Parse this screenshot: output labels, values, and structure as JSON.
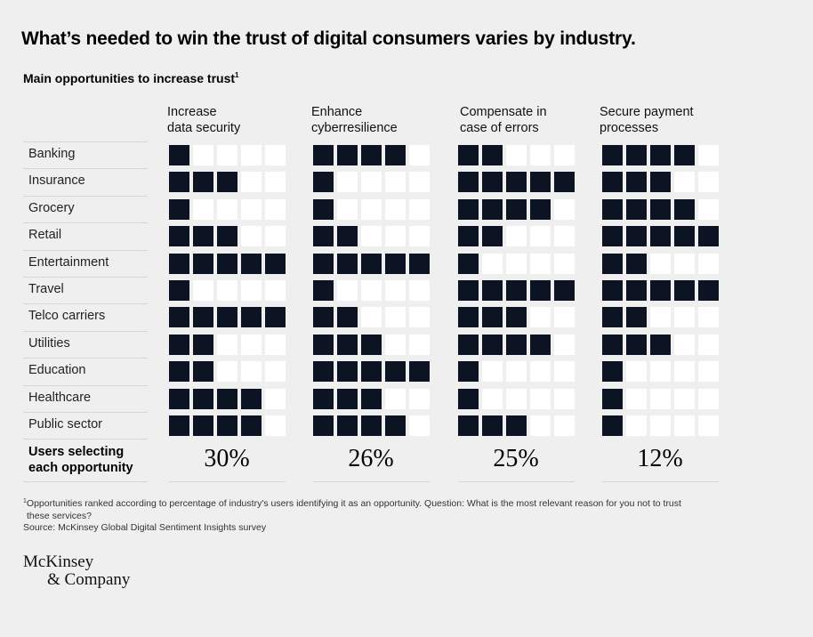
{
  "title": "What’s needed to win the trust of digital consumers varies by industry.",
  "subtitle": "Main opportunities to increase trust",
  "subtitle_footnote_mark": "1",
  "chart_data": {
    "type": "table",
    "max_score": 5,
    "columns": [
      {
        "line1": "Increase",
        "line2": "data security",
        "users_pct": "30%"
      },
      {
        "line1": "Enhance",
        "line2": "cyberresilience",
        "users_pct": "26%"
      },
      {
        "line1": "Compensate in",
        "line2": "case of errors",
        "users_pct": "25%"
      },
      {
        "line1": "Secure payment",
        "line2": "processes",
        "users_pct": "12%"
      }
    ],
    "rows": [
      {
        "industry": "Banking",
        "scores": [
          1,
          4,
          2,
          4
        ]
      },
      {
        "industry": "Insurance",
        "scores": [
          3,
          1,
          5,
          3
        ]
      },
      {
        "industry": "Grocery",
        "scores": [
          1,
          1,
          4,
          4
        ]
      },
      {
        "industry": "Retail",
        "scores": [
          3,
          2,
          2,
          5
        ]
      },
      {
        "industry": "Entertainment",
        "scores": [
          5,
          5,
          1,
          2
        ]
      },
      {
        "industry": "Travel",
        "scores": [
          1,
          1,
          5,
          5
        ]
      },
      {
        "industry": "Telco carriers",
        "scores": [
          5,
          2,
          3,
          2
        ]
      },
      {
        "industry": "Utilities",
        "scores": [
          2,
          3,
          4,
          3
        ]
      },
      {
        "industry": "Education",
        "scores": [
          2,
          5,
          1,
          1
        ]
      },
      {
        "industry": "Healthcare",
        "scores": [
          4,
          3,
          1,
          1
        ]
      },
      {
        "industry": "Public sector",
        "scores": [
          4,
          4,
          3,
          1
        ]
      }
    ],
    "users_label_line1": "Users selecting",
    "users_label_line2": "each opportunity"
  },
  "footnote": {
    "mark": "1",
    "line1": "Opportunities ranked according to percentage of industry's users identifying it as an opportunity. Question: What is the most relevant reason for you not to trust",
    "line2": "these services?",
    "source": "Source: McKinsey Global Digital Sentiment Insights survey"
  },
  "logo": {
    "line1": "McKinsey",
    "line2": "& Company"
  },
  "colors": {
    "filled": "#0c1424",
    "empty": "#ffffff",
    "background": "#efefef"
  }
}
